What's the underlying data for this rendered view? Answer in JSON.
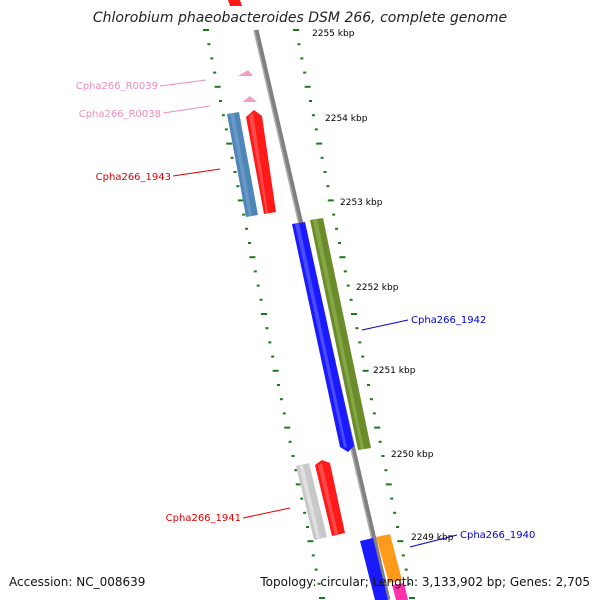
{
  "title": "Chlorobium phaeobacteroides DSM 266, complete genome",
  "footer": {
    "accession": "Accession: NC_008639",
    "summary": "Topology: circular; Length: 3,133,902 bp; Genes: 2,705"
  },
  "colors": {
    "backbone": "#808080",
    "tick": "#1a7a1a",
    "rna": "#f2a0c8",
    "red_gene": "#ff1a1a",
    "blue_gene": "#1a1aff",
    "steel_gene": "#4f86b8",
    "olive_gene": "#6b8c2a",
    "grey_gene": "#c8c8c8",
    "orange_gene": "#ff9a1a",
    "magenta_gene": "#ff33aa"
  },
  "scale_labels": [
    {
      "id": "s2255",
      "text": "2255 kbp"
    },
    {
      "id": "s2254",
      "text": "2254 kbp"
    },
    {
      "id": "s2253",
      "text": "2253 kbp"
    },
    {
      "id": "s2252",
      "text": "2252 kbp"
    },
    {
      "id": "s2251",
      "text": "2251 kbp"
    },
    {
      "id": "s2250",
      "text": "2250 kbp"
    },
    {
      "id": "s2249",
      "text": "2249 kbp"
    }
  ],
  "gene_labels": [
    {
      "id": "r0039",
      "text": "Cpha266_R0039",
      "color": "#f08cbe"
    },
    {
      "id": "r0038",
      "text": "Cpha266_R0038",
      "color": "#f08cbe"
    },
    {
      "id": "g1943",
      "text": "Cpha266_1943",
      "color": "#e00000"
    },
    {
      "id": "g1942",
      "text": "Cpha266_1942",
      "color": "#0000cc"
    },
    {
      "id": "g1941",
      "text": "Cpha266_1941",
      "color": "#e00000"
    },
    {
      "id": "g1940",
      "text": "Cpha266_1940",
      "color": "#0000cc"
    }
  ]
}
